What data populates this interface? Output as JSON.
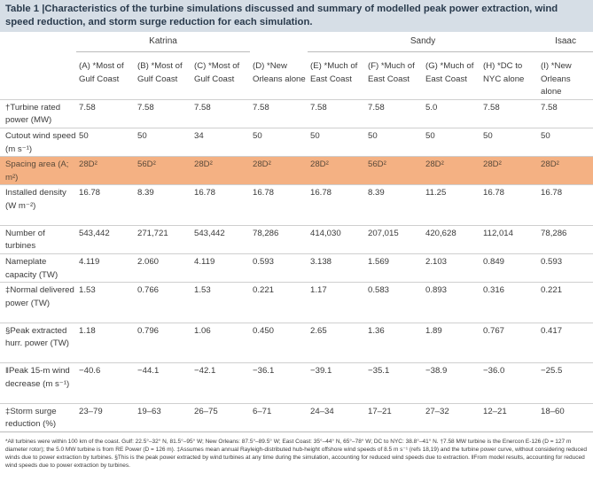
{
  "caption": {
    "label": "Table 1 |",
    "text": "Characteristics of the turbine simulations discussed and summary of modelled peak power extraction, wind speed reduction, and storm surge reduction for each simulation."
  },
  "groups": [
    "Katrina",
    "Sandy",
    "Isaac"
  ],
  "scenarios": [
    {
      "id": "(A)",
      "mark": "*",
      "name": "Most of Gulf Coast"
    },
    {
      "id": "(B)",
      "mark": "*",
      "name": "Most of Gulf Coast"
    },
    {
      "id": "(C)",
      "mark": "*",
      "name": "Most of Gulf Coast"
    },
    {
      "id": "(D)",
      "mark": "*",
      "name": "New Orleans alone"
    },
    {
      "id": "(E)",
      "mark": "*",
      "name": "Much of East Coast"
    },
    {
      "id": "(F)",
      "mark": "*",
      "name": "Much of East Coast"
    },
    {
      "id": "(G)",
      "mark": "*",
      "name": "Much of East Coast"
    },
    {
      "id": "(H)",
      "mark": "*",
      "name": "DC to NYC alone"
    },
    {
      "id": "(I)",
      "mark": "*",
      "name": "New Orleans alone"
    }
  ],
  "rows": [
    {
      "label": "†Turbine rated power (MW)",
      "values": [
        "7.58",
        "7.58",
        "7.58",
        "7.58",
        "7.58",
        "7.58",
        "5.0",
        "7.58",
        "7.58"
      ]
    },
    {
      "label": "Cutout wind speed (m s⁻¹)",
      "values": [
        "50",
        "50",
        "34",
        "50",
        "50",
        "50",
        "50",
        "50",
        "50"
      ]
    },
    {
      "label": "Spacing area (A; m²)",
      "values": [
        "28D²",
        "56D²",
        "28D²",
        "28D²",
        "28D²",
        "56D²",
        "28D²",
        "28D²",
        "28D²"
      ],
      "highlight": true
    },
    {
      "label": "Installed density (W m⁻²)",
      "values": [
        "16.78",
        "8.39",
        "16.78",
        "16.78",
        "16.78",
        "8.39",
        "11.25",
        "16.78",
        "16.78"
      ]
    },
    {
      "label": "Number of turbines",
      "values": [
        "543,442",
        "271,721",
        "543,442",
        "78,286",
        "414,030",
        "207,015",
        "420,628",
        "112,014",
        "78,286"
      ]
    },
    {
      "label": "Nameplate capacity (TW)",
      "values": [
        "4.119",
        "2.060",
        "4.119",
        "0.593",
        "3.138",
        "1.569",
        "2.103",
        "0.849",
        "0.593"
      ]
    },
    {
      "label": "‡Normal delivered power (TW)",
      "values": [
        "1.53",
        "0.766",
        "1.53",
        "0.221",
        "1.17",
        "0.583",
        "0.893",
        "0.316",
        "0.221"
      ]
    },
    {
      "label": "§Peak extracted hurr. power (TW)",
      "values": [
        "1.18",
        "0.796",
        "1.06",
        "0.450",
        "2.65",
        "1.36",
        "1.89",
        "0.767",
        "0.417"
      ]
    },
    {
      "label": "‖Peak 15-m wind decrease (m s⁻¹)",
      "values": [
        "−40.6",
        "−44.1",
        "−42.1",
        "−36.1",
        "−39.1",
        "−35.1",
        "−38.9",
        "−36.0",
        "−25.5"
      ]
    },
    {
      "label": "‡Storm surge reduction (%)",
      "values": [
        "23–79",
        "19–63",
        "26–75",
        "6–71",
        "24–34",
        "17–21",
        "27–32",
        "12–21",
        "18–60"
      ]
    }
  ],
  "footnote": "*All turbines were within 100 km of the coast. Gulf: 22.5°–32° N, 81.5°–95° W; New Orleans: 87.5°–89.5° W; East Coast: 35°–44° N, 65°–78° W; DC to NYC: 38.8°–41° N. †7.58 MW turbine is the Enercon E-126 (D = 127 m diameter rotor); the 5.0 MW turbine is from RE Power (D = 126 m). ‡Assumes mean annual Rayleigh-distributed hub-height offshore wind speeds of 8.5 m s⁻¹ (refs 18,19) and the turbine power curve, without considering reduced winds due to power extraction by turbines. §This is the peak power extracted by wind turbines at any time during the simulation, accounting for reduced wind speeds due to extraction. ‖From model results, accounting for reduced wind speeds due to power extraction by turbines."
}
